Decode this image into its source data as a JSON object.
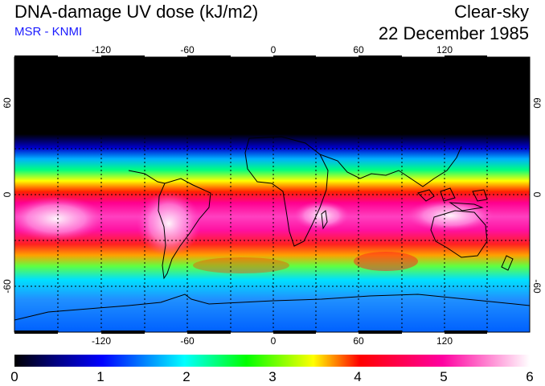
{
  "header": {
    "title": "DNA-damage UV dose (kJ/m2)",
    "subtitle": "MSR - KNMI",
    "condition": "Clear-sky",
    "date": "22 December 1985"
  },
  "map": {
    "lon_labels": [
      "-120",
      "-60",
      "0",
      "60",
      "120"
    ],
    "lat_labels": [
      "60",
      "0",
      "-60"
    ],
    "lon_range": [
      -180,
      180
    ],
    "lat_range": [
      -90,
      90
    ]
  },
  "colorbar": {
    "labels": [
      "0",
      "1",
      "2",
      "3",
      "4",
      "5",
      "6"
    ],
    "min": 0,
    "max": 6,
    "colors": [
      "#000000",
      "#0000ff",
      "#00ffff",
      "#00ff00",
      "#ffff00",
      "#ff0000",
      "#ff00a0",
      "#ffffff"
    ]
  }
}
